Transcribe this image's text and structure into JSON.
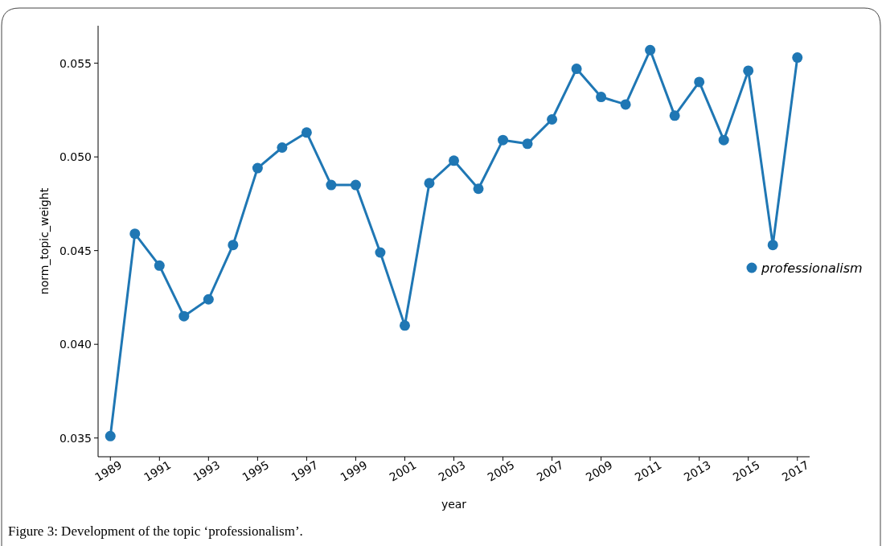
{
  "chart_data": {
    "type": "line",
    "xlabel": "year",
    "ylabel": "norm_topic_weight",
    "x": [
      1989,
      1990,
      1991,
      1992,
      1993,
      1994,
      1995,
      1996,
      1997,
      1998,
      1999,
      2000,
      2001,
      2002,
      2003,
      2004,
      2005,
      2006,
      2007,
      2008,
      2009,
      2010,
      2011,
      2012,
      2013,
      2014,
      2015,
      2016,
      2017
    ],
    "series": [
      {
        "name": "professionalism",
        "color": "#1f77b4",
        "values": [
          0.0351,
          0.0459,
          0.0442,
          0.0415,
          0.0424,
          0.0453,
          0.0494,
          0.0505,
          0.0513,
          0.0485,
          0.0485,
          0.0449,
          0.041,
          0.0486,
          0.0498,
          0.0483,
          0.0509,
          0.0507,
          0.052,
          0.0547,
          0.0532,
          0.0528,
          0.0557,
          0.0522,
          0.054,
          0.0509,
          0.0546,
          0.0453,
          0.0553
        ]
      }
    ],
    "xlim": [
      1988.5,
      2017.5
    ],
    "xticks": [
      1989,
      1991,
      1993,
      1995,
      1997,
      1999,
      2001,
      2003,
      2005,
      2007,
      2009,
      2011,
      2013,
      2015,
      2017
    ],
    "ylim": [
      0.034,
      0.057
    ],
    "yticks": [
      {
        "value": 0.035,
        "label": "0.035"
      },
      {
        "value": 0.04,
        "label": "0.040"
      },
      {
        "value": 0.045,
        "label": "0.045"
      },
      {
        "value": 0.05,
        "label": "0.050"
      },
      {
        "value": 0.055,
        "label": "0.055"
      }
    ],
    "marker": "circle",
    "line_style": "solid",
    "legend": "right",
    "grid": false,
    "annotations": [
      "Figure 3: Development of the topic ‘professionalism’."
    ]
  }
}
